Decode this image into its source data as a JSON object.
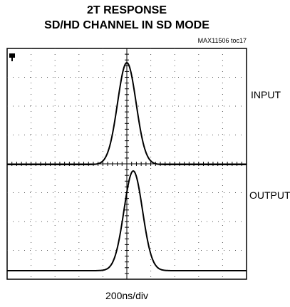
{
  "chart_data": {
    "type": "line",
    "title": [
      "2T RESPONSE",
      "SD/HD CHANNEL IN SD MODE"
    ],
    "note": "MAX11506 toc17",
    "annotations": [
      "INPUT",
      "OUTPUT"
    ],
    "xlabel": "200ns/div"
  }
}
